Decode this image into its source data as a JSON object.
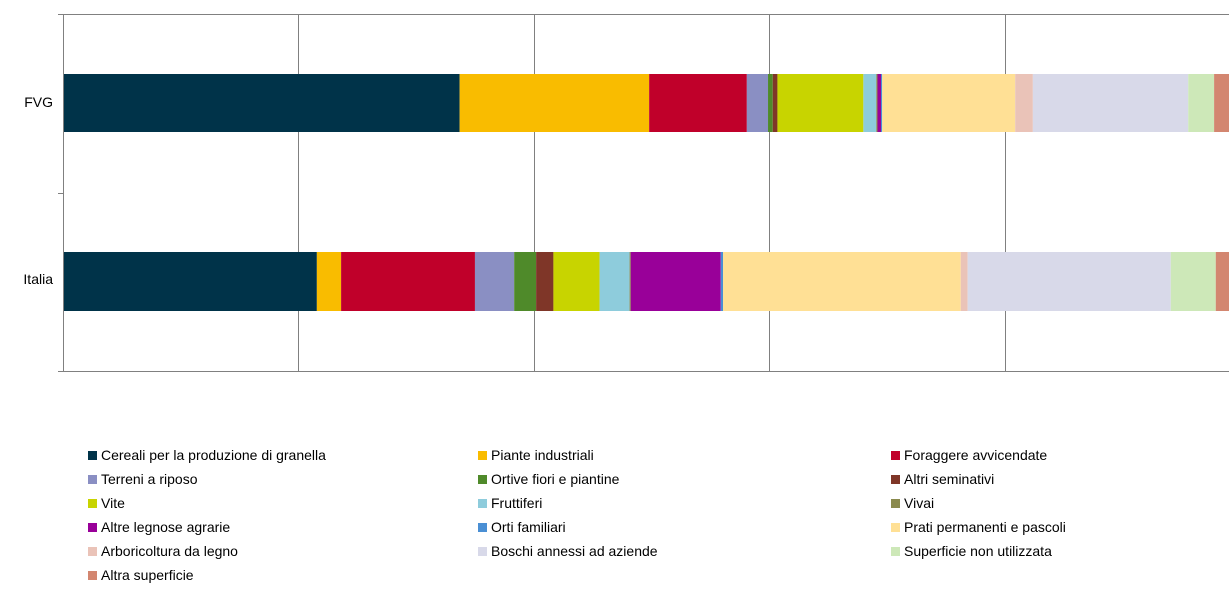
{
  "chart_data": {
    "type": "bar",
    "orientation": "horizontal",
    "stacking": "percent",
    "categories": [
      "FVG",
      "Italia"
    ],
    "xlim": [
      0,
      100
    ],
    "grid": true,
    "legend_position": "bottom",
    "series": [
      {
        "name": "Cereali per la produzione di granella",
        "color": "#003349",
        "values": [
          33.7,
          22.0
        ]
      },
      {
        "name": "Piante industriali",
        "color": "#F9BC00",
        "values": [
          16.1,
          2.1
        ]
      },
      {
        "name": "Foraggere avvicendate",
        "color": "#C0002A",
        "values": [
          8.3,
          11.6
        ]
      },
      {
        "name": "Terreni a riposo",
        "color": "#8A8FC3",
        "values": [
          1.8,
          3.4
        ]
      },
      {
        "name": "Ortive fiori e piantine",
        "color": "#4F8A2A",
        "values": [
          0.4,
          1.9
        ]
      },
      {
        "name": "Altri seminativi",
        "color": "#7F3628",
        "values": [
          0.4,
          1.5
        ]
      },
      {
        "name": "Vite",
        "color": "#C8D400",
        "values": [
          7.3,
          4.0
        ]
      },
      {
        "name": "Fruttiferi",
        "color": "#8ECCDC",
        "values": [
          1.1,
          2.6
        ]
      },
      {
        "name": "Vivai",
        "color": "#8A8A4E",
        "values": [
          0.1,
          0.1
        ]
      },
      {
        "name": "Altre legnose agrarie",
        "color": "#990099",
        "values": [
          0.3,
          7.8
        ]
      },
      {
        "name": "Orti familiari",
        "color": "#4A8FD4",
        "values": [
          0.1,
          0.2
        ]
      },
      {
        "name": "Prati permanenti e pascoli",
        "color": "#FFE095",
        "values": [
          11.3,
          20.6
        ]
      },
      {
        "name": "Arboricoltura da legno",
        "color": "#EAC3B8",
        "values": [
          1.5,
          0.6
        ]
      },
      {
        "name": "Boschi annessi ad aziende",
        "color": "#D8D9E9",
        "values": [
          13.2,
          17.6
        ]
      },
      {
        "name": "Superficie non utilizzata",
        "color": "#CDE8B8",
        "values": [
          2.2,
          3.9
        ]
      },
      {
        "name": "Altra superficie",
        "color": "#D38670",
        "values": [
          2.2,
          2.1
        ]
      }
    ]
  }
}
